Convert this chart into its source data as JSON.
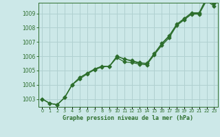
{
  "title": "Graphe pression niveau de la mer (hPa)",
  "bg_color": "#cce8e8",
  "grid_color": "#b0d0d0",
  "line_color": "#2d6e2d",
  "x_values": [
    0,
    1,
    2,
    3,
    4,
    5,
    6,
    7,
    8,
    9,
    10,
    11,
    12,
    13,
    14,
    15,
    16,
    17,
    18,
    19,
    20,
    21,
    22,
    23
  ],
  "y_main": [
    1003.0,
    1002.7,
    1002.6,
    1003.1,
    1004.0,
    1004.5,
    1004.8,
    1005.1,
    1005.3,
    1005.3,
    1006.0,
    1005.8,
    1005.65,
    1005.5,
    1005.45,
    1006.15,
    1006.85,
    1007.4,
    1008.2,
    1008.6,
    1009.0,
    1009.0,
    1010.0,
    1009.6
  ],
  "y_upper": [
    1003.0,
    1002.7,
    1002.6,
    1003.1,
    1004.0,
    1004.5,
    1004.8,
    1005.1,
    1005.3,
    1005.3,
    1006.0,
    1005.8,
    1005.7,
    1005.55,
    1005.5,
    1006.2,
    1006.9,
    1007.45,
    1008.25,
    1008.65,
    1009.05,
    1009.05,
    1010.1,
    1009.7
  ],
  "y_lower": [
    1003.0,
    1002.7,
    1002.6,
    1003.1,
    1004.0,
    1004.4,
    1004.75,
    1005.05,
    1005.25,
    1005.3,
    1005.9,
    1005.6,
    1005.55,
    1005.45,
    1005.4,
    1006.1,
    1006.75,
    1007.3,
    1008.15,
    1008.55,
    1008.95,
    1008.95,
    1009.9,
    1009.5
  ],
  "ylim": [
    1002.45,
    1009.75
  ],
  "xlim": [
    -0.5,
    23.5
  ],
  "yticks": [
    1003,
    1004,
    1005,
    1006,
    1007,
    1008,
    1009
  ],
  "xticks": [
    0,
    1,
    2,
    3,
    4,
    5,
    6,
    7,
    8,
    9,
    10,
    11,
    12,
    13,
    14,
    15,
    16,
    17,
    18,
    19,
    20,
    21,
    22,
    23
  ]
}
